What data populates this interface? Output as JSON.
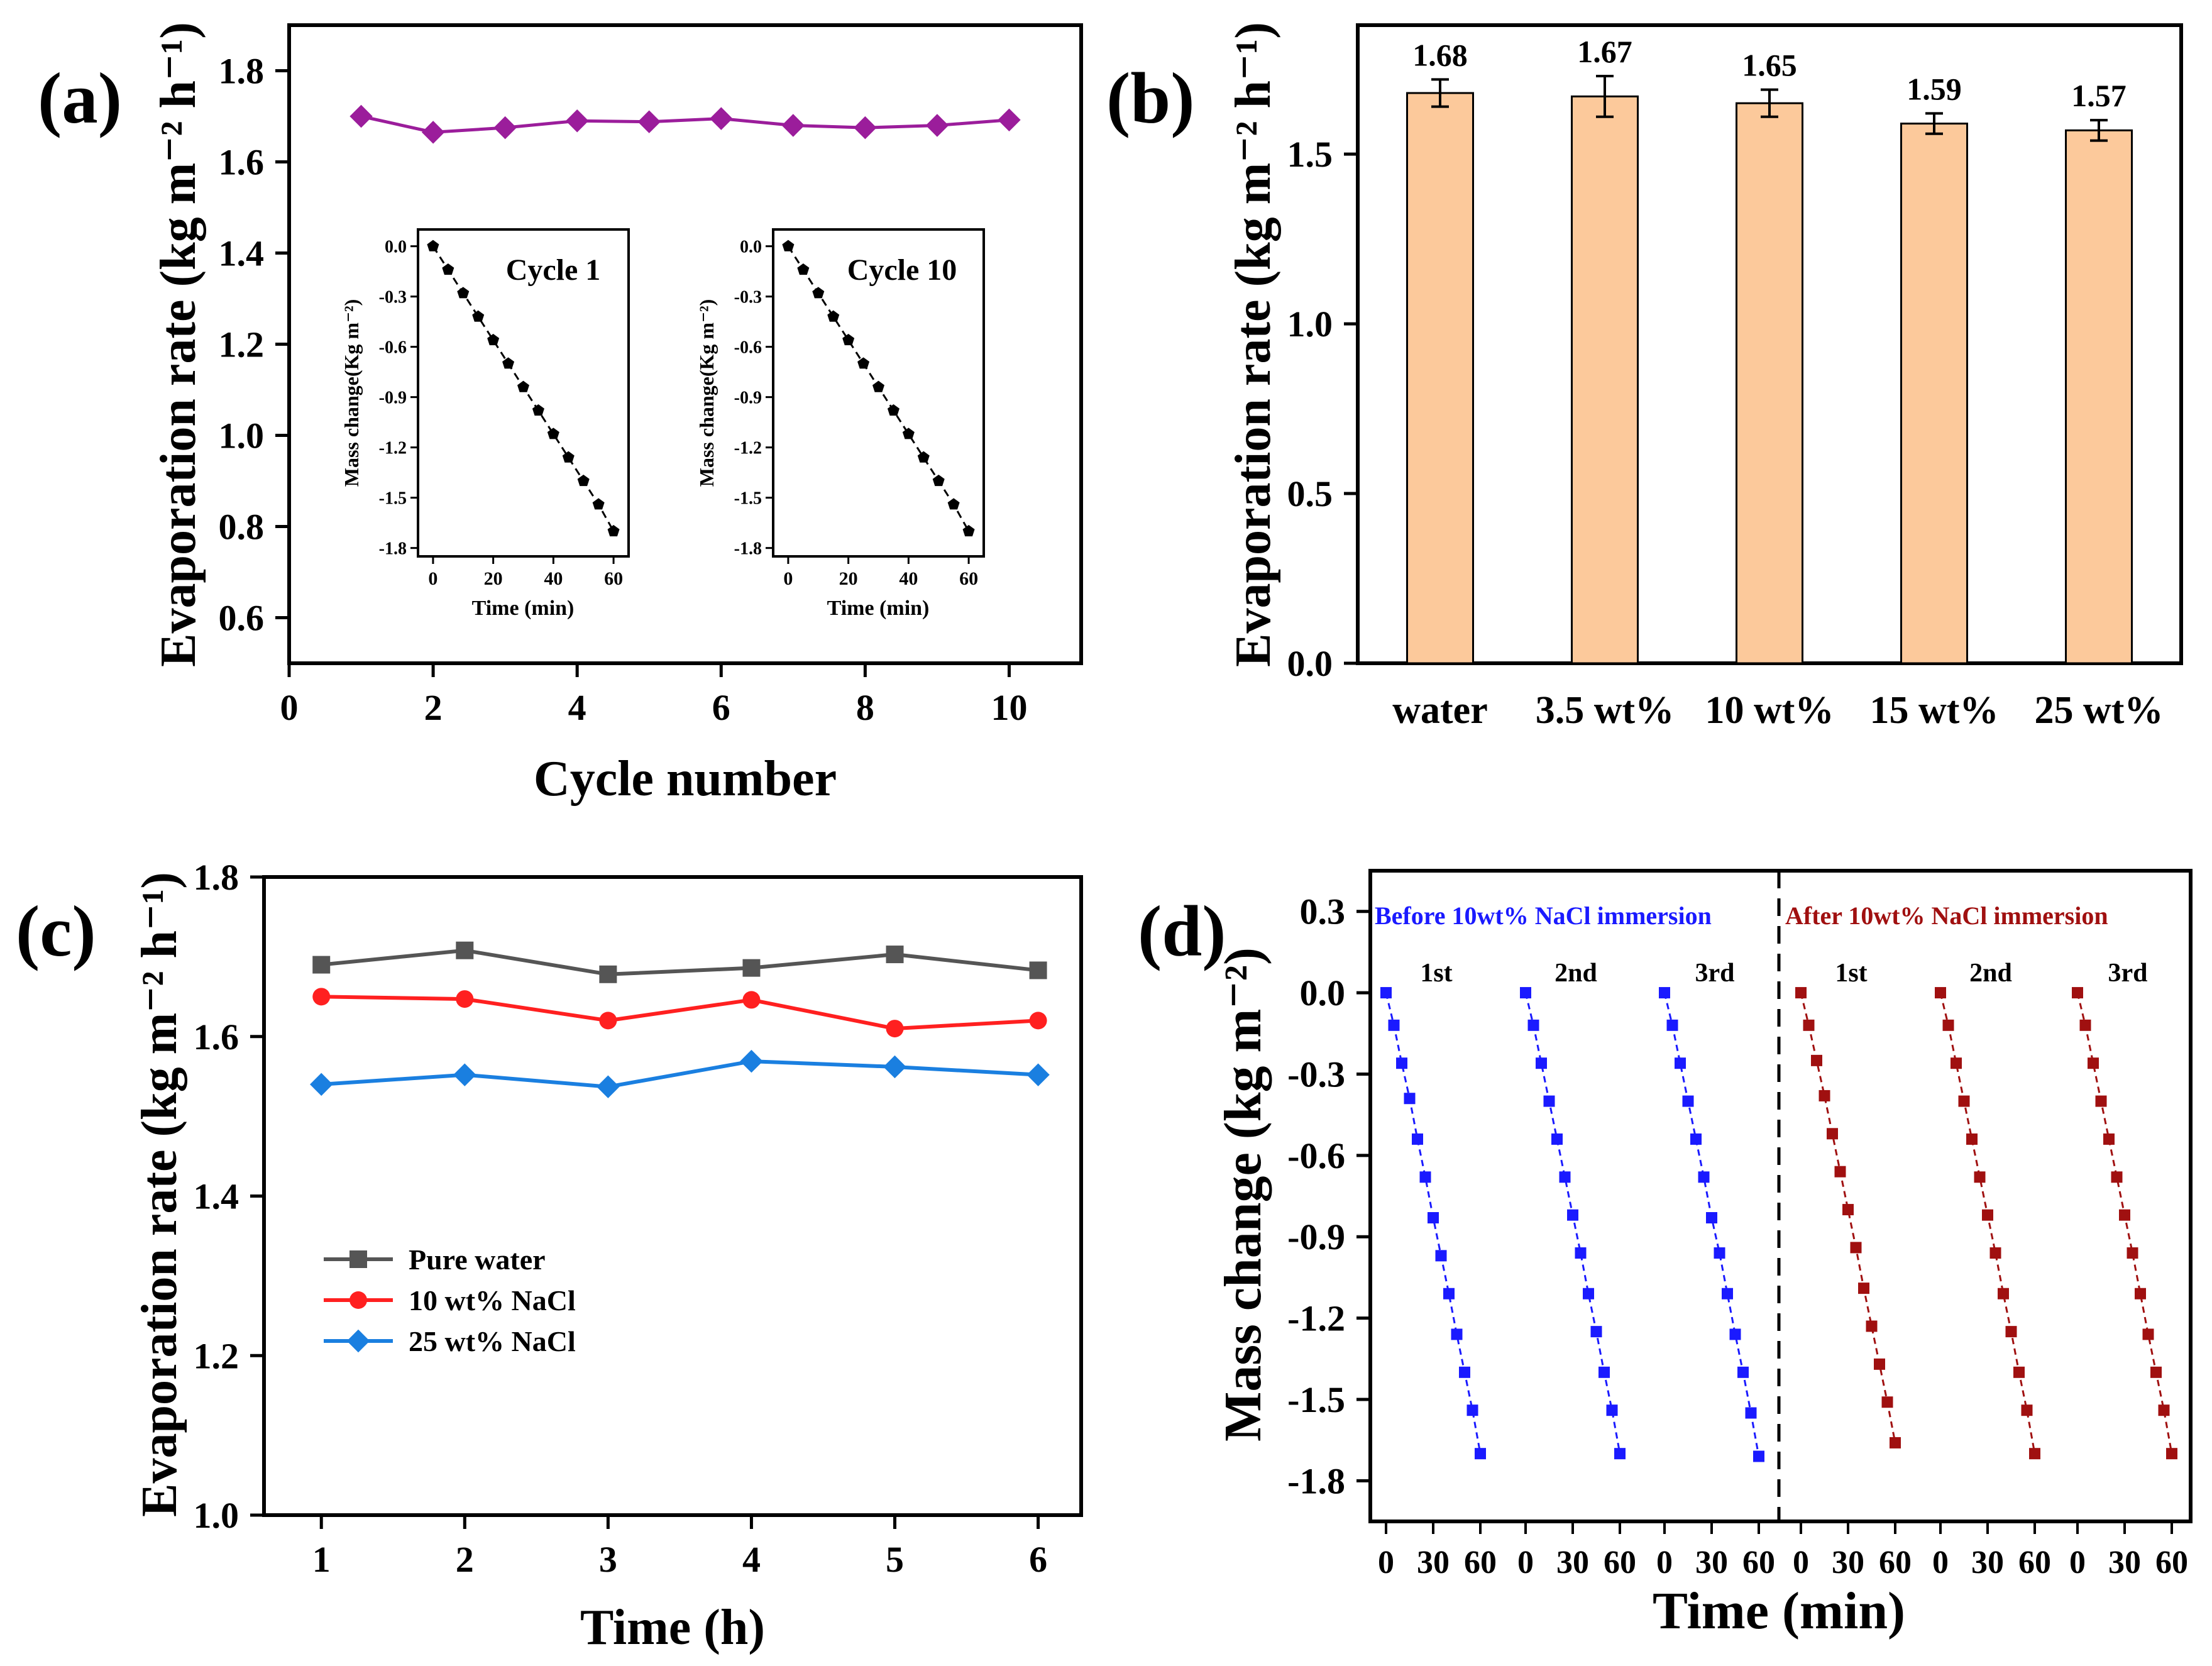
{
  "panels": {
    "a": {
      "label": "(a)",
      "chart_data": {
        "type": "line",
        "x": [
          1,
          2,
          3,
          4,
          5,
          6,
          7,
          8,
          9,
          10
        ],
        "y": [
          1.7,
          1.665,
          1.675,
          1.69,
          1.688,
          1.695,
          1.68,
          1.675,
          1.68,
          1.692
        ],
        "xlabel": "Cycle number",
        "ylabel": "Evaporation rate (kg m⁻² h⁻¹)",
        "xlim": [
          0,
          11
        ],
        "ylim": [
          0.5,
          1.9
        ],
        "xticks": [
          "0",
          "2",
          "4",
          "6",
          "8",
          "10"
        ],
        "yticks": [
          "0.6",
          "0.8",
          "1.0",
          "1.2",
          "1.4",
          "1.6",
          "1.8"
        ],
        "color": "#9b1d9b",
        "marker": "diamond",
        "insets": [
          {
            "title": "Cycle 1",
            "type": "line",
            "x": [
              0,
              5,
              10,
              15,
              20,
              25,
              30,
              35,
              40,
              45,
              50,
              55,
              60
            ],
            "y": [
              0,
              -0.14,
              -0.28,
              -0.42,
              -0.56,
              -0.7,
              -0.84,
              -0.98,
              -1.12,
              -1.26,
              -1.4,
              -1.54,
              -1.7
            ],
            "xlabel": "Time (min)",
            "ylabel": "Mass change(Kg m⁻²)",
            "xlim": [
              -5,
              65
            ],
            "ylim": [
              -1.85,
              0.1
            ],
            "xticks": [
              "0",
              "20",
              "40",
              "60"
            ],
            "yticks": [
              "0.0",
              "-0.3",
              "-0.6",
              "-0.9",
              "-1.2",
              "-1.5",
              "-1.8"
            ]
          },
          {
            "title": "Cycle 10",
            "type": "line",
            "x": [
              0,
              5,
              10,
              15,
              20,
              25,
              30,
              35,
              40,
              45,
              50,
              55,
              60
            ],
            "y": [
              0,
              -0.14,
              -0.28,
              -0.42,
              -0.56,
              -0.7,
              -0.84,
              -0.98,
              -1.12,
              -1.26,
              -1.4,
              -1.54,
              -1.7
            ],
            "xlabel": "Time (min)",
            "ylabel": "Mass change(Kg m⁻²)",
            "xlim": [
              -5,
              65
            ],
            "ylim": [
              -1.85,
              0.1
            ],
            "xticks": [
              "0",
              "20",
              "40",
              "60"
            ],
            "yticks": [
              "0.0",
              "-0.3",
              "-0.6",
              "-0.9",
              "-1.2",
              "-1.5",
              "-1.8"
            ]
          }
        ]
      }
    },
    "b": {
      "label": "(b)",
      "chart_data": {
        "type": "bar",
        "categories": [
          "water",
          "3.5 wt%",
          "10 wt%",
          "15 wt%",
          "25 wt%"
        ],
        "values": [
          1.68,
          1.67,
          1.65,
          1.59,
          1.57
        ],
        "value_labels": [
          "1.68",
          "1.67",
          "1.65",
          "1.59",
          "1.57"
        ],
        "errors": [
          0.04,
          0.06,
          0.04,
          0.03,
          0.03
        ],
        "ylabel": "Evaporation rate (kg m⁻² h⁻¹)",
        "ylim": [
          0,
          1.88
        ],
        "yticks": [
          "0.0",
          "0.5",
          "1.0",
          "1.5"
        ],
        "bar_color": "#fcc99b",
        "edge_color": "#000000"
      }
    },
    "c": {
      "label": "(c)",
      "chart_data": {
        "type": "line",
        "x": [
          1,
          2,
          3,
          4,
          5,
          6
        ],
        "series": [
          {
            "name": "Pure water",
            "values": [
              1.69,
              1.708,
              1.678,
              1.686,
              1.703,
              1.683
            ],
            "color": "#555555",
            "marker": "square"
          },
          {
            "name": "10 wt% NaCl",
            "values": [
              1.65,
              1.647,
              1.62,
              1.646,
              1.61,
              1.62
            ],
            "color": "#ff2020",
            "marker": "circle"
          },
          {
            "name": "25 wt% NaCl",
            "values": [
              1.54,
              1.552,
              1.537,
              1.569,
              1.562,
              1.552
            ],
            "color": "#1a7fe0",
            "marker": "diamond"
          }
        ],
        "xlabel": "Time (h)",
        "ylabel": "Evaporation rate (kg m⁻² h⁻¹)",
        "xlim": [
          0.6,
          6.3
        ],
        "ylim": [
          1.0,
          1.8
        ],
        "xticks": [
          "1",
          "2",
          "3",
          "4",
          "5",
          "6"
        ],
        "yticks": [
          "1.0",
          "1.2",
          "1.4",
          "1.6",
          "1.8"
        ],
        "legend_position": "lower-left"
      }
    },
    "d": {
      "label": "(d)",
      "chart_data": {
        "type": "line",
        "xlabel": "Time (min)",
        "ylabel": "Mass change (kg m⁻²)",
        "ylim": [
          -1.95,
          0.45
        ],
        "yticks": [
          "0.3",
          "0.0",
          "-0.3",
          "-0.6",
          "-0.9",
          "-1.2",
          "-1.5",
          "-1.8"
        ],
        "segment_xticks": [
          "0",
          "30",
          "60"
        ],
        "group_labels": [
          "Before 10wt% NaCl immersion",
          "After 10wt% NaCl immersion"
        ],
        "cycle_labels": [
          "1st",
          "2nd",
          "3rd",
          "1st",
          "2nd",
          "3rd"
        ],
        "x_per_cycle": [
          0,
          5,
          10,
          15,
          20,
          25,
          30,
          35,
          40,
          45,
          50,
          55,
          60
        ],
        "series": [
          {
            "name": "1st",
            "group": "Before 10wt% NaCl immersion",
            "color": "#1a1aff",
            "values": [
              0,
              -0.12,
              -0.26,
              -0.39,
              -0.54,
              -0.68,
              -0.83,
              -0.97,
              -1.11,
              -1.26,
              -1.4,
              -1.54,
              -1.7
            ]
          },
          {
            "name": "2nd",
            "group": "Before 10wt% NaCl immersion",
            "color": "#1a1aff",
            "values": [
              0,
              -0.12,
              -0.26,
              -0.4,
              -0.54,
              -0.68,
              -0.82,
              -0.96,
              -1.11,
              -1.25,
              -1.4,
              -1.54,
              -1.7
            ]
          },
          {
            "name": "3rd",
            "group": "Before 10wt% NaCl immersion",
            "color": "#1a1aff",
            "values": [
              0,
              -0.12,
              -0.26,
              -0.4,
              -0.54,
              -0.68,
              -0.83,
              -0.96,
              -1.11,
              -1.26,
              -1.4,
              -1.55,
              -1.71
            ]
          },
          {
            "name": "1st",
            "group": "After 10wt% NaCl immersion",
            "color": "#a01010",
            "values": [
              0,
              -0.12,
              -0.25,
              -0.38,
              -0.52,
              -0.66,
              -0.8,
              -0.94,
              -1.09,
              -1.23,
              -1.37,
              -1.51,
              -1.66
            ]
          },
          {
            "name": "2nd",
            "group": "After 10wt% NaCl immersion",
            "color": "#a01010",
            "values": [
              0,
              -0.12,
              -0.26,
              -0.4,
              -0.54,
              -0.68,
              -0.82,
              -0.96,
              -1.11,
              -1.25,
              -1.4,
              -1.54,
              -1.7
            ]
          },
          {
            "name": "3rd",
            "group": "After 10wt% NaCl immersion",
            "color": "#a01010",
            "values": [
              0,
              -0.12,
              -0.26,
              -0.4,
              -0.54,
              -0.68,
              -0.82,
              -0.96,
              -1.11,
              -1.26,
              -1.4,
              -1.54,
              -1.7
            ]
          }
        ]
      }
    }
  }
}
